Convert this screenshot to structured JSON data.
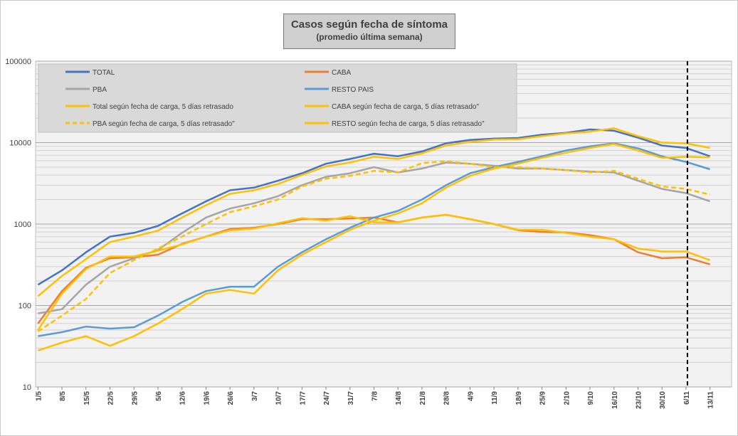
{
  "title": "Casos según fecha de síntoma",
  "subtitle": "(promedio última semana)",
  "chart_data": {
    "type": "line",
    "y_scale": "log",
    "ylim": [
      10,
      100000
    ],
    "y_ticks": [
      "10",
      "100",
      "1000",
      "10000",
      "100000"
    ],
    "x_ticks": [
      "1/5",
      "8/5",
      "15/5",
      "22/5",
      "29/5",
      "5/6",
      "12/6",
      "19/6",
      "26/6",
      "3/7",
      "10/7",
      "17/7",
      "24/7",
      "31/7",
      "7/8",
      "14/8",
      "21/8",
      "28/8",
      "4/9",
      "11/9",
      "18/9",
      "25/9",
      "2/10",
      "9/10",
      "16/10",
      "23/10",
      "30/10",
      "6/11",
      "13/11"
    ],
    "reference_line": "6/11",
    "grid": true,
    "legend_placement": "top-left",
    "series": [
      {
        "name": "TOTAL",
        "color": "#4472c4",
        "dash": false,
        "values": [
          180,
          270,
          450,
          700,
          780,
          950,
          1350,
          1900,
          2600,
          2800,
          3400,
          4200,
          5500,
          6300,
          7300,
          6800,
          7800,
          9800,
          10800,
          11200,
          11400,
          12500,
          13200,
          14500,
          14000,
          11500,
          9200,
          8600,
          6800
        ]
      },
      {
        "name": "CABA",
        "color": "#ed7d31",
        "dash": false,
        "values": [
          60,
          150,
          290,
          380,
          390,
          420,
          570,
          700,
          870,
          900,
          1000,
          1150,
          1150,
          1170,
          1200,
          1050,
          1200,
          1300,
          1150,
          1000,
          840,
          800,
          790,
          730,
          650,
          450,
          380,
          390,
          320
        ]
      },
      {
        "name": "PBA",
        "color": "#a5a5a5",
        "dash": false,
        "values": [
          80,
          90,
          180,
          300,
          380,
          480,
          780,
          1200,
          1550,
          1800,
          2200,
          3000,
          3800,
          4200,
          5000,
          4300,
          4800,
          5700,
          5500,
          5200,
          4800,
          4800,
          4600,
          4400,
          4300,
          3400,
          2700,
          2400,
          1900
        ]
      },
      {
        "name": "RESTO PAIS",
        "color": "#5b9bd5",
        "dash": false,
        "values": [
          42,
          47,
          55,
          52,
          54,
          75,
          110,
          150,
          170,
          170,
          300,
          450,
          650,
          900,
          1200,
          1450,
          2000,
          3000,
          4200,
          5000,
          5800,
          6800,
          8000,
          9000,
          9800,
          8500,
          6800,
          5800,
          4700
        ]
      },
      {
        "name": "Total según fecha de carga, 5 días retrasado",
        "color": "#ffc000",
        "dash": false,
        "values": [
          130,
          230,
          370,
          600,
          700,
          830,
          1200,
          1700,
          2350,
          2600,
          3100,
          4000,
          5100,
          5700,
          6700,
          6300,
          7400,
          9200,
          10200,
          10900,
          11000,
          12000,
          13000,
          13600,
          15000,
          12000,
          10000,
          9800,
          8600
        ]
      },
      {
        "name": "CABA según fecha de carga, 5 días retrasado\"",
        "color": "#ffc000",
        "dash": false,
        "values": [
          50,
          140,
          280,
          400,
          400,
          470,
          560,
          700,
          840,
          880,
          1020,
          1180,
          1100,
          1250,
          1050,
          1050,
          1200,
          1300,
          1150,
          1000,
          850,
          850,
          780,
          700,
          650,
          500,
          460,
          460,
          360
        ]
      },
      {
        "name": "PBA según fecha de carga, 5 días retrasado\"",
        "color": "#ffc000",
        "dash": true,
        "values": [
          48,
          75,
          120,
          250,
          360,
          500,
          700,
          1000,
          1400,
          1650,
          2000,
          2900,
          3600,
          3900,
          4500,
          4300,
          5600,
          5900,
          5500,
          5000,
          5000,
          4800,
          4600,
          4300,
          4500,
          3600,
          2900,
          2700,
          2300
        ]
      },
      {
        "name": "RESTO según fecha de carga, 5 días retrasado\"",
        "color": "#ffc000",
        "dash": false,
        "values": [
          28,
          35,
          42,
          32,
          42,
          60,
          90,
          140,
          155,
          140,
          270,
          420,
          600,
          850,
          1100,
          1350,
          1800,
          2800,
          3900,
          4800,
          5500,
          6500,
          7500,
          8600,
          9600,
          8000,
          6500,
          6700,
          6600
        ]
      }
    ]
  }
}
